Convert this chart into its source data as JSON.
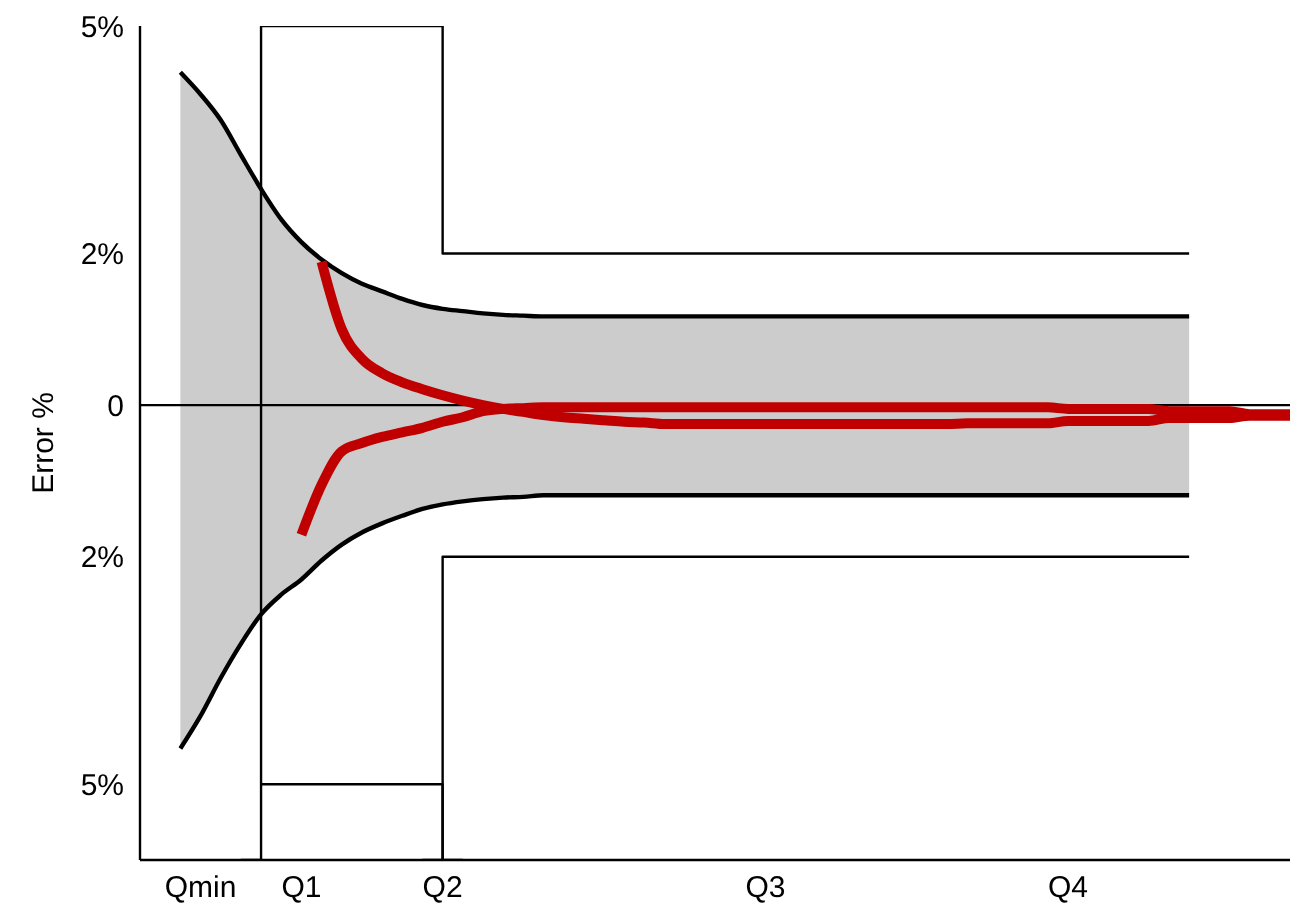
{
  "chart_data": {
    "type": "line",
    "ylabel": "Error %",
    "ylim": [
      -6,
      5
    ],
    "categories": [
      null,
      null,
      null,
      "Qmin",
      null,
      null,
      null,
      null,
      "Q1",
      null,
      null,
      null,
      null,
      null,
      null,
      "Q2",
      null,
      null,
      null,
      null,
      null,
      null,
      null,
      null,
      null,
      null,
      null,
      null,
      null,
      null,
      null,
      "Q3",
      null,
      null,
      null,
      null,
      null,
      null,
      null,
      null,
      null,
      null,
      null,
      null,
      null,
      null,
      "Q4",
      null,
      null,
      null,
      null,
      null,
      null,
      null,
      null,
      null,
      null,
      null
    ],
    "yticks": [
      {
        "value": 5,
        "label": "5%"
      },
      {
        "value": 2,
        "label": "2%"
      },
      0,
      {
        "value": -2,
        "label": "2%"
      },
      {
        "value": -5,
        "label": "5%"
      }
    ],
    "ref_lines": [
      {
        "axis": "y",
        "value": 0,
        "color": "#000000"
      }
    ],
    "grid": false,
    "marker": "none",
    "line_style": "solid",
    "series": [
      {
        "color": "#000000",
        "values": [
          null,
          null,
          4.39,
          4.1,
          3.76,
          3.3,
          2.85,
          2.45,
          2.15,
          1.92,
          1.74,
          1.6,
          1.5,
          1.4,
          1.32,
          1.27,
          1.24,
          1.21,
          1.19,
          1.18,
          1.17,
          1.17,
          1.17,
          1.17,
          1.17,
          1.17,
          1.17,
          1.17,
          1.17,
          1.17,
          1.17,
          1.17,
          1.17,
          1.17,
          1.17,
          1.17,
          1.17,
          1.17,
          1.17,
          1.17,
          1.17,
          1.17,
          1.17,
          1.17,
          1.17,
          1.17,
          1.17,
          1.17,
          1.17,
          1.17,
          1.17,
          1.17,
          1.17,
          null,
          null,
          null,
          null,
          null
        ],
        "upper": [
          null,
          null,
          4.39,
          4.1,
          3.76,
          3.3,
          2.85,
          2.45,
          2.15,
          1.92,
          1.74,
          1.6,
          1.5,
          1.4,
          1.32,
          1.27,
          1.24,
          1.21,
          1.19,
          1.18,
          1.17,
          1.17,
          1.17,
          1.17,
          1.17,
          1.17,
          1.17,
          1.17,
          1.17,
          1.17,
          1.17,
          1.17,
          1.17,
          1.17,
          1.17,
          1.17,
          1.17,
          1.17,
          1.17,
          1.17,
          1.17,
          1.17,
          1.17,
          1.17,
          1.17,
          1.17,
          1.17,
          1.17,
          1.17,
          1.17,
          1.17,
          1.17,
          1.17,
          null,
          null,
          null,
          null,
          null
        ],
        "lower": [
          null,
          null,
          -4.53,
          -4.1,
          -3.6,
          -3.15,
          -2.76,
          -2.5,
          -2.3,
          -2.05,
          -1.84,
          -1.68,
          -1.56,
          -1.46,
          -1.37,
          -1.31,
          -1.27,
          -1.24,
          -1.22,
          -1.21,
          -1.19,
          -1.19,
          -1.19,
          -1.19,
          -1.19,
          -1.19,
          -1.19,
          -1.19,
          -1.19,
          -1.19,
          -1.19,
          -1.19,
          -1.19,
          -1.19,
          -1.19,
          -1.19,
          -1.19,
          -1.19,
          -1.19,
          -1.19,
          -1.19,
          -1.19,
          -1.19,
          -1.19,
          -1.19,
          -1.19,
          -1.19,
          -1.19,
          -1.19,
          -1.19,
          -1.19,
          -1.19,
          -1.19,
          null,
          null,
          null,
          null,
          null
        ]
      },
      {
        "type": "step",
        "color": "#000000",
        "values": [
          null,
          null,
          null,
          null,
          null,
          -6,
          null,
          5,
          5,
          5,
          5,
          5,
          5,
          5,
          5,
          null,
          2,
          2,
          2,
          2,
          2,
          2,
          2,
          2,
          2,
          2,
          2,
          2,
          2,
          2,
          2,
          2,
          2,
          2,
          2,
          2,
          2,
          2,
          2,
          2,
          2,
          2,
          2,
          2,
          2,
          2,
          2,
          2,
          2,
          2,
          2,
          2,
          2,
          null,
          null,
          null,
          null,
          null
        ]
      },
      {
        "type": "step",
        "color": "#000000",
        "values": [
          null,
          null,
          null,
          null,
          null,
          null,
          -5,
          -5,
          -5,
          -5,
          -5,
          -5,
          -5,
          -5,
          -5,
          null,
          -6,
          null,
          null,
          null,
          null,
          null,
          null,
          null,
          null,
          null,
          null,
          null,
          null,
          null,
          null,
          null,
          null,
          null,
          null,
          null,
          null,
          null,
          null,
          null,
          null,
          null,
          null,
          null,
          null,
          null,
          null,
          null,
          null,
          null,
          null,
          null,
          null,
          null,
          null,
          null,
          null,
          null
        ]
      },
      {
        "type": "step",
        "color": "#000000",
        "values": [
          null,
          null,
          null,
          null,
          null,
          null,
          null,
          null,
          null,
          null,
          null,
          null,
          null,
          null,
          -6,
          null,
          -2,
          -2,
          -2,
          -2,
          -2,
          -2,
          -2,
          -2,
          -2,
          -2,
          -2,
          -2,
          -2,
          -2,
          -2,
          -2,
          -2,
          -2,
          -2,
          -2,
          -2,
          -2,
          -2,
          -2,
          -2,
          -2,
          -2,
          -2,
          -2,
          -2,
          -2,
          -2,
          -2,
          -2,
          -2,
          -2,
          -2,
          null,
          null,
          null,
          null,
          null
        ]
      },
      {
        "color": "#000000",
        "values": [
          null,
          null,
          -4.53,
          -4.1,
          -3.6,
          -3.15,
          -2.76,
          -2.5,
          -2.3,
          -2.05,
          -1.84,
          -1.68,
          -1.56,
          -1.46,
          -1.37,
          -1.31,
          -1.27,
          -1.24,
          -1.22,
          -1.21,
          -1.19,
          -1.19,
          -1.19,
          -1.19,
          -1.19,
          -1.19,
          -1.19,
          -1.19,
          -1.19,
          -1.19,
          -1.19,
          -1.19,
          -1.19,
          -1.19,
          -1.19,
          -1.19,
          -1.19,
          -1.19,
          -1.19,
          -1.19,
          -1.19,
          -1.19,
          -1.19,
          -1.19,
          -1.19,
          -1.19,
          -1.19,
          -1.19,
          -1.19,
          -1.19,
          -1.19,
          -1.19,
          -1.19,
          null,
          null,
          null,
          null,
          null
        ]
      },
      {
        "color": "#c00000",
        "values": [
          null,
          null,
          null,
          null,
          null,
          null,
          null,
          null,
          null,
          1.89,
          1.0,
          0.61,
          0.42,
          0.3,
          0.21,
          0.13,
          0.06,
          0,
          -0.05,
          -0.09,
          -0.13,
          -0.16,
          -0.18,
          -0.2,
          -0.22,
          -0.23,
          -0.25,
          -0.25,
          -0.25,
          -0.25,
          -0.25,
          -0.25,
          -0.25,
          -0.25,
          -0.25,
          -0.25,
          -0.25,
          -0.25,
          -0.25,
          -0.25,
          -0.25,
          -0.24,
          -0.24,
          -0.24,
          -0.24,
          -0.24,
          -0.21,
          -0.21,
          -0.21,
          -0.21,
          -0.21,
          -0.17,
          -0.17,
          -0.17,
          -0.17,
          -0.14,
          -0.14,
          -0.14
        ]
      },
      {
        "color": "#c00000",
        "values": [
          null,
          null,
          null,
          null,
          null,
          null,
          null,
          null,
          -1.71,
          -1.05,
          -0.61,
          -0.5,
          -0.42,
          -0.36,
          -0.3,
          -0.22,
          -0.16,
          -0.08,
          -0.05,
          -0.04,
          -0.03,
          -0.03,
          -0.03,
          -0.03,
          -0.03,
          -0.03,
          -0.03,
          -0.03,
          -0.03,
          -0.03,
          -0.03,
          -0.03,
          -0.03,
          -0.03,
          -0.03,
          -0.03,
          -0.03,
          -0.03,
          -0.03,
          -0.03,
          -0.03,
          -0.03,
          -0.03,
          -0.03,
          -0.03,
          -0.03,
          -0.05,
          -0.05,
          -0.05,
          -0.05,
          -0.05,
          -0.08,
          -0.08,
          -0.08,
          -0.08,
          -0.12,
          -0.12,
          -0.12
        ]
      }
    ]
  }
}
